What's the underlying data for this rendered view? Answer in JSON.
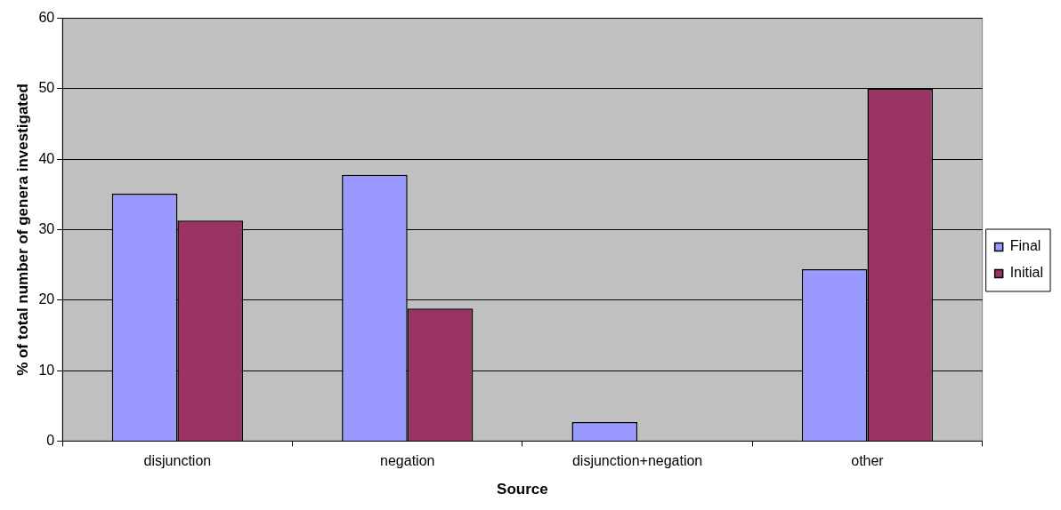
{
  "chart_data": {
    "type": "bar",
    "xlabel": "Source",
    "ylabel": "% of total number of genera investigated",
    "categories": [
      "disjunction",
      "negation",
      "disjunction+negation",
      "other"
    ],
    "series": [
      {
        "name": "Final",
        "color": "#9999ff",
        "values": [
          35.1,
          37.8,
          2.7,
          24.4
        ]
      },
      {
        "name": "Initial",
        "color": "#993366",
        "values": [
          31.3,
          18.8,
          null,
          50
        ]
      }
    ],
    "ylim": [
      0,
      60
    ],
    "yticks": [
      0,
      10,
      20,
      30,
      40,
      50,
      60
    ],
    "grid": "y",
    "legend": "right"
  }
}
